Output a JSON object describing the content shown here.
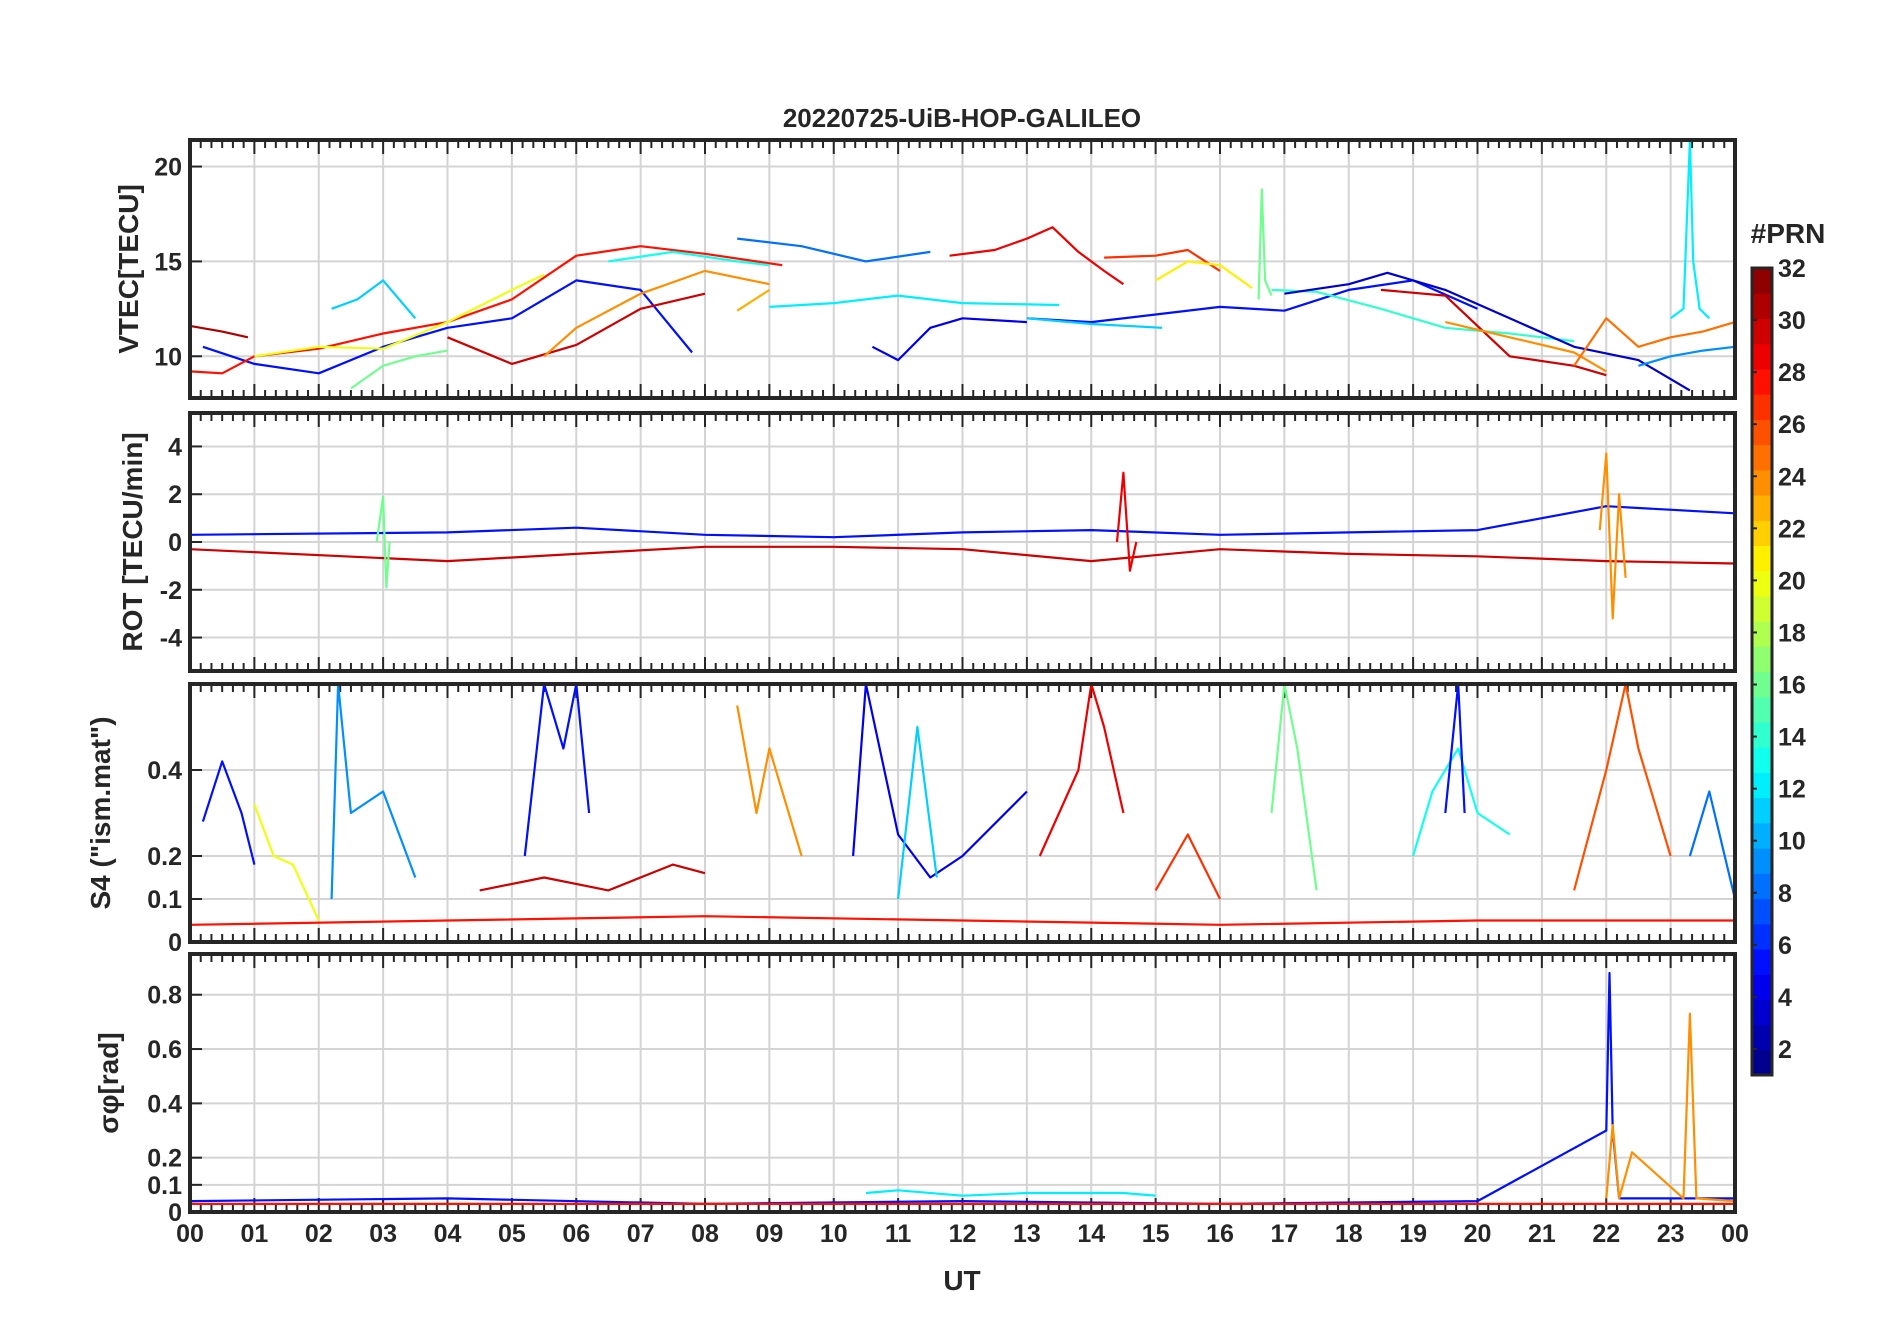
{
  "figure": {
    "title": "20220725-UiB-HOP-GALILEO",
    "xlabel": "UT",
    "x_tick_labels": [
      "00",
      "01",
      "02",
      "03",
      "04",
      "05",
      "06",
      "07",
      "08",
      "09",
      "10",
      "11",
      "12",
      "13",
      "14",
      "15",
      "16",
      "17",
      "18",
      "19",
      "20",
      "21",
      "22",
      "23",
      "00"
    ]
  },
  "colorbar": {
    "title": "#PRN",
    "colormap": "jet",
    "range": [
      1,
      32
    ],
    "levels": 32,
    "tick_labels": [
      "2",
      "4",
      "6",
      "8",
      "10",
      "12",
      "14",
      "16",
      "18",
      "20",
      "22",
      "24",
      "26",
      "28",
      "30",
      "32"
    ],
    "tick_values": [
      2,
      4,
      6,
      8,
      10,
      12,
      14,
      16,
      18,
      20,
      22,
      24,
      26,
      28,
      30,
      32
    ]
  },
  "chart_data": [
    {
      "type": "line",
      "panel": "vtec",
      "ylabel": "VTEC[TECU]",
      "xlim": [
        0,
        24
      ],
      "ylim": [
        7.8,
        21.4
      ],
      "y_ticks": [
        10,
        15,
        20
      ],
      "y_tick_labels": [
        "10",
        "15",
        "20"
      ],
      "grid": true,
      "color_by": "PRN",
      "series": [
        {
          "prn": 31,
          "x": [
            0,
            0.5,
            0.9
          ],
          "y": [
            11.6,
            11.3,
            11.0
          ]
        },
        {
          "prn": 5,
          "x": [
            0.2,
            1,
            2,
            3,
            4,
            5,
            6,
            7,
            7.8
          ],
          "y": [
            10.5,
            9.6,
            9.1,
            10.5,
            11.5,
            12.0,
            14.0,
            13.5,
            10.2
          ]
        },
        {
          "prn": 28,
          "x": [
            0,
            0.5,
            1,
            2,
            3,
            4,
            5,
            6,
            7,
            8,
            9.2
          ],
          "y": [
            9.2,
            9.1,
            10.0,
            10.4,
            11.2,
            11.8,
            13.0,
            15.3,
            15.8,
            15.4,
            14.8
          ]
        },
        {
          "prn": 20,
          "x": [
            1.0,
            2.0,
            3.0,
            4.0,
            5.0,
            5.5
          ],
          "y": [
            10.0,
            10.5,
            10.4,
            11.8,
            13.5,
            14.3
          ]
        },
        {
          "prn": 11,
          "x": [
            2.2,
            2.6,
            3.0,
            3.5
          ],
          "y": [
            12.5,
            13.0,
            14.0,
            12.0
          ]
        },
        {
          "prn": 16,
          "x": [
            2.5,
            3.0,
            3.5,
            4.0
          ],
          "y": [
            8.3,
            9.5,
            10.0,
            10.3
          ]
        },
        {
          "prn": 30,
          "x": [
            4.0,
            5.0,
            6.0,
            7.0,
            8.0
          ],
          "y": [
            11.0,
            9.6,
            10.6,
            12.5,
            13.3
          ]
        },
        {
          "prn": 24,
          "x": [
            5.5,
            6.0,
            7.0,
            8.0,
            9.0
          ],
          "y": [
            10.0,
            11.5,
            13.3,
            14.5,
            13.8
          ]
        },
        {
          "prn": 13,
          "x": [
            6.5,
            7.5,
            8.5,
            9.0
          ],
          "y": [
            15.0,
            15.5,
            15.0,
            14.8
          ]
        },
        {
          "prn": 8,
          "x": [
            8.5,
            9.5,
            10.5,
            11.5
          ],
          "y": [
            16.2,
            15.8,
            15.0,
            15.5
          ]
        },
        {
          "prn": 23,
          "x": [
            8.5,
            9.0
          ],
          "y": [
            12.4,
            13.5
          ]
        },
        {
          "prn": 12,
          "x": [
            9.0,
            10.0,
            11.0,
            12.0,
            13.5
          ],
          "y": [
            12.6,
            12.8,
            13.2,
            12.8,
            12.7
          ]
        },
        {
          "prn": 4,
          "x": [
            10.6,
            11.0,
            11.5,
            12.0,
            13.0
          ],
          "y": [
            10.5,
            9.8,
            11.5,
            12.0,
            11.8
          ]
        },
        {
          "prn": 5,
          "x": [
            13,
            14,
            15,
            16,
            17,
            18,
            19,
            20
          ],
          "y": [
            12.0,
            11.8,
            12.2,
            12.6,
            12.4,
            13.5,
            14.0,
            12.5
          ]
        },
        {
          "prn": 29,
          "x": [
            11.8,
            12.5,
            13.0,
            13.4,
            13.8,
            14.2,
            14.5
          ],
          "y": [
            15.3,
            15.6,
            16.2,
            16.8,
            15.5,
            14.5,
            13.8
          ]
        },
        {
          "prn": 27,
          "x": [
            14.2,
            15,
            15.5,
            16
          ],
          "y": [
            15.2,
            15.3,
            15.6,
            14.5
          ]
        },
        {
          "prn": 21,
          "x": [
            15,
            15.5,
            16,
            16.5
          ],
          "y": [
            14.0,
            15.0,
            14.8,
            13.6
          ]
        },
        {
          "prn": 11,
          "x": [
            13.0,
            14.0,
            15.1
          ],
          "y": [
            12.0,
            11.7,
            11.5
          ]
        },
        {
          "prn": 16,
          "x": [
            16.6,
            16.65,
            16.7,
            16.8
          ],
          "y": [
            13.0,
            18.8,
            14.0,
            13.2
          ]
        },
        {
          "prn": 14,
          "x": [
            16.8,
            17.5,
            18.5,
            19.5,
            20.5,
            21.5
          ],
          "y": [
            13.5,
            13.4,
            12.5,
            11.5,
            11.2,
            10.8
          ]
        },
        {
          "prn": 3,
          "x": [
            17.0,
            18.0,
            18.6,
            19.5,
            20.5,
            21.5,
            22.5,
            23.3
          ],
          "y": [
            13.3,
            13.8,
            14.4,
            13.5,
            12.0,
            10.5,
            9.8,
            8.2
          ]
        },
        {
          "prn": 30,
          "x": [
            18.5,
            19.5,
            20.5,
            21.5,
            22.0
          ],
          "y": [
            13.5,
            13.2,
            10.0,
            9.5,
            9.0
          ]
        },
        {
          "prn": 24,
          "x": [
            19.5,
            20.5,
            21.5,
            22.0
          ],
          "y": [
            11.8,
            11.0,
            10.2,
            9.2
          ]
        },
        {
          "prn": 25,
          "x": [
            21.5,
            22.0,
            22.5,
            23.0,
            23.5,
            24.0
          ],
          "y": [
            9.5,
            12.0,
            10.5,
            11.0,
            11.3,
            11.8
          ]
        },
        {
          "prn": 12,
          "x": [
            23.0,
            23.2,
            23.3,
            23.35,
            23.45,
            23.6
          ],
          "y": [
            12.0,
            12.5,
            21.4,
            15.0,
            12.5,
            12.0
          ]
        },
        {
          "prn": 9,
          "x": [
            22.5,
            23.0,
            23.5,
            24.0
          ],
          "y": [
            9.5,
            10.0,
            10.3,
            10.5
          ]
        }
      ]
    },
    {
      "type": "line",
      "panel": "rot",
      "ylabel": "ROT [TECU/min]",
      "xlim": [
        0,
        24
      ],
      "ylim": [
        -5.4,
        5.4
      ],
      "y_ticks": [
        -4,
        -2,
        0,
        2,
        4
      ],
      "y_tick_labels": [
        "-4",
        "-2",
        "0",
        "2",
        "4"
      ],
      "grid": true,
      "color_by": "PRN",
      "series": [
        {
          "prn": 5,
          "x": [
            0,
            4,
            6,
            8,
            10,
            12,
            14,
            16,
            18,
            20,
            22,
            24
          ],
          "y": [
            0.3,
            0.4,
            0.6,
            0.3,
            0.2,
            0.4,
            0.5,
            0.3,
            0.4,
            0.5,
            1.5,
            1.2
          ]
        },
        {
          "prn": 30,
          "x": [
            0,
            4,
            6,
            8,
            10,
            12,
            14,
            16,
            18,
            20,
            22,
            24
          ],
          "y": [
            -0.3,
            -0.8,
            -0.5,
            -0.2,
            -0.2,
            -0.3,
            -0.8,
            -0.3,
            -0.5,
            -0.6,
            -0.8,
            -0.9
          ]
        },
        {
          "prn": 29,
          "x": [
            14.4,
            14.5,
            14.6,
            14.7
          ],
          "y": [
            0.0,
            2.9,
            -1.2,
            0.0
          ]
        },
        {
          "prn": 24,
          "x": [
            21.9,
            22.0,
            22.1,
            22.2,
            22.3
          ],
          "y": [
            0.5,
            3.7,
            -3.2,
            2.0,
            -1.5
          ]
        },
        {
          "prn": 16,
          "x": [
            2.9,
            3.0,
            3.05,
            3.1
          ],
          "y": [
            0.0,
            1.9,
            -1.9,
            0.0
          ]
        }
      ]
    },
    {
      "type": "line",
      "panel": "s4",
      "ylabel": "S4 (\"ism.mat\")",
      "xlim": [
        0,
        24
      ],
      "ylim": [
        0,
        0.6
      ],
      "y_ticks": [
        0,
        0.1,
        0.2,
        0.4
      ],
      "y_tick_labels": [
        "0",
        "0.1",
        "0.2",
        "0.4"
      ],
      "grid": true,
      "color_by": "PRN",
      "series": [
        {
          "prn": 5,
          "x": [
            0.2,
            0.5,
            0.8,
            1.0
          ],
          "y": [
            0.28,
            0.42,
            0.3,
            0.18
          ]
        },
        {
          "prn": 20,
          "x": [
            1.0,
            1.3,
            1.6,
            2.0
          ],
          "y": [
            0.32,
            0.2,
            0.18,
            0.05
          ]
        },
        {
          "prn": 9,
          "x": [
            2.2,
            2.3,
            2.5,
            3.0,
            3.5
          ],
          "y": [
            0.1,
            0.6,
            0.3,
            0.35,
            0.15
          ]
        },
        {
          "prn": 5,
          "x": [
            5.2,
            5.5,
            5.8,
            6.0,
            6.2
          ],
          "y": [
            0.2,
            0.6,
            0.45,
            0.6,
            0.3
          ]
        },
        {
          "prn": 30,
          "x": [
            4.5,
            5.5,
            6.5,
            7.5,
            8.0
          ],
          "y": [
            0.12,
            0.15,
            0.12,
            0.18,
            0.16
          ]
        },
        {
          "prn": 24,
          "x": [
            8.5,
            8.8,
            9.0,
            9.5
          ],
          "y": [
            0.55,
            0.3,
            0.45,
            0.2
          ]
        },
        {
          "prn": 4,
          "x": [
            10.3,
            10.5,
            11.0,
            11.5,
            12.0,
            13.0
          ],
          "y": [
            0.2,
            0.6,
            0.25,
            0.15,
            0.2,
            0.35
          ]
        },
        {
          "prn": 11,
          "x": [
            11.0,
            11.3,
            11.6
          ],
          "y": [
            0.1,
            0.5,
            0.15
          ]
        },
        {
          "prn": 29,
          "x": [
            13.2,
            13.8,
            14.0,
            14.2,
            14.5
          ],
          "y": [
            0.2,
            0.4,
            0.6,
            0.5,
            0.3
          ]
        },
        {
          "prn": 27,
          "x": [
            15.0,
            15.5,
            16.0
          ],
          "y": [
            0.12,
            0.25,
            0.1
          ]
        },
        {
          "prn": 16,
          "x": [
            16.8,
            17.0,
            17.2,
            17.5
          ],
          "y": [
            0.3,
            0.6,
            0.45,
            0.12
          ]
        },
        {
          "prn": 13,
          "x": [
            19.0,
            19.3,
            19.7,
            20.0,
            20.5
          ],
          "y": [
            0.2,
            0.35,
            0.45,
            0.3,
            0.25
          ]
        },
        {
          "prn": 5,
          "x": [
            19.5,
            19.7,
            19.8
          ],
          "y": [
            0.3,
            0.6,
            0.3
          ]
        },
        {
          "prn": 26,
          "x": [
            21.5,
            22.0,
            22.3,
            22.5,
            23.0
          ],
          "y": [
            0.12,
            0.4,
            0.6,
            0.45,
            0.2
          ]
        },
        {
          "prn": 8,
          "x": [
            23.3,
            23.6,
            24.0
          ],
          "y": [
            0.2,
            0.35,
            0.1
          ]
        },
        {
          "prn": 28,
          "x": [
            0,
            4,
            8,
            12,
            16,
            20,
            24
          ],
          "y": [
            0.04,
            0.05,
            0.06,
            0.05,
            0.04,
            0.05,
            0.05
          ]
        }
      ]
    },
    {
      "type": "line",
      "panel": "sigma_phi",
      "ylabel": "σφ[rad]",
      "xlim": [
        0,
        24
      ],
      "ylim": [
        0,
        0.95
      ],
      "y_ticks": [
        0,
        0.1,
        0.2,
        0.4,
        0.6,
        0.8
      ],
      "y_tick_labels": [
        "0",
        "0.1",
        "0.2",
        "0.4",
        "0.6",
        "0.8"
      ],
      "grid": true,
      "color_by": "PRN",
      "series": [
        {
          "prn": 5,
          "x": [
            0,
            4,
            8,
            12,
            16,
            20,
            22.0,
            22.05,
            22.1,
            22.2,
            24
          ],
          "y": [
            0.04,
            0.05,
            0.03,
            0.04,
            0.03,
            0.04,
            0.3,
            0.88,
            0.3,
            0.05,
            0.05
          ]
        },
        {
          "prn": 12,
          "x": [
            10.5,
            11.0,
            12.0,
            13.0,
            14.5,
            15.0
          ],
          "y": [
            0.07,
            0.08,
            0.06,
            0.07,
            0.07,
            0.06
          ]
        },
        {
          "prn": 24,
          "x": [
            22.0,
            22.1,
            22.2,
            22.4,
            23.2,
            23.3,
            23.4,
            24.0
          ],
          "y": [
            0.05,
            0.32,
            0.05,
            0.22,
            0.05,
            0.73,
            0.05,
            0.04
          ]
        },
        {
          "prn": 28,
          "x": [
            0,
            6,
            12,
            18,
            24
          ],
          "y": [
            0.03,
            0.03,
            0.03,
            0.03,
            0.03
          ]
        }
      ]
    }
  ]
}
